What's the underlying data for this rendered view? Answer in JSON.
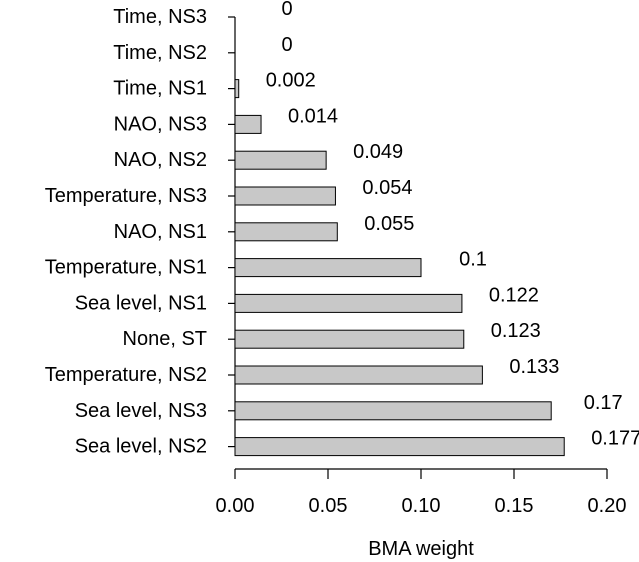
{
  "chart_data": {
    "type": "bar",
    "orientation": "horizontal",
    "title": "",
    "xlabel": "BMA weight",
    "ylabel": "",
    "xlim": [
      0,
      0.2
    ],
    "xticks": [
      "0.00",
      "0.05",
      "0.10",
      "0.15",
      "0.20"
    ],
    "categories": [
      "Time, NS3",
      "Time, NS2",
      "Time, NS1",
      "NAO, NS3",
      "NAO, NS2",
      "Temperature, NS3",
      "NAO, NS1",
      "Temperature, NS1",
      "Sea level, NS1",
      "None, ST",
      "Temperature, NS2",
      "Sea level, NS3",
      "Sea level, NS2"
    ],
    "values": [
      0,
      0,
      0.002,
      0.014,
      0.049,
      0.054,
      0.055,
      0.1,
      0.122,
      0.123,
      0.133,
      0.17,
      0.177
    ],
    "value_labels": [
      "0",
      "0",
      "0.002",
      "0.014",
      "0.049",
      "0.054",
      "0.055",
      "0.1",
      "0.122",
      "0.123",
      "0.133",
      "0.17",
      "0.177"
    ],
    "bar_color": "#c8c8c8",
    "bar_edge_color": "#000000",
    "grid": false,
    "legend": "none"
  }
}
